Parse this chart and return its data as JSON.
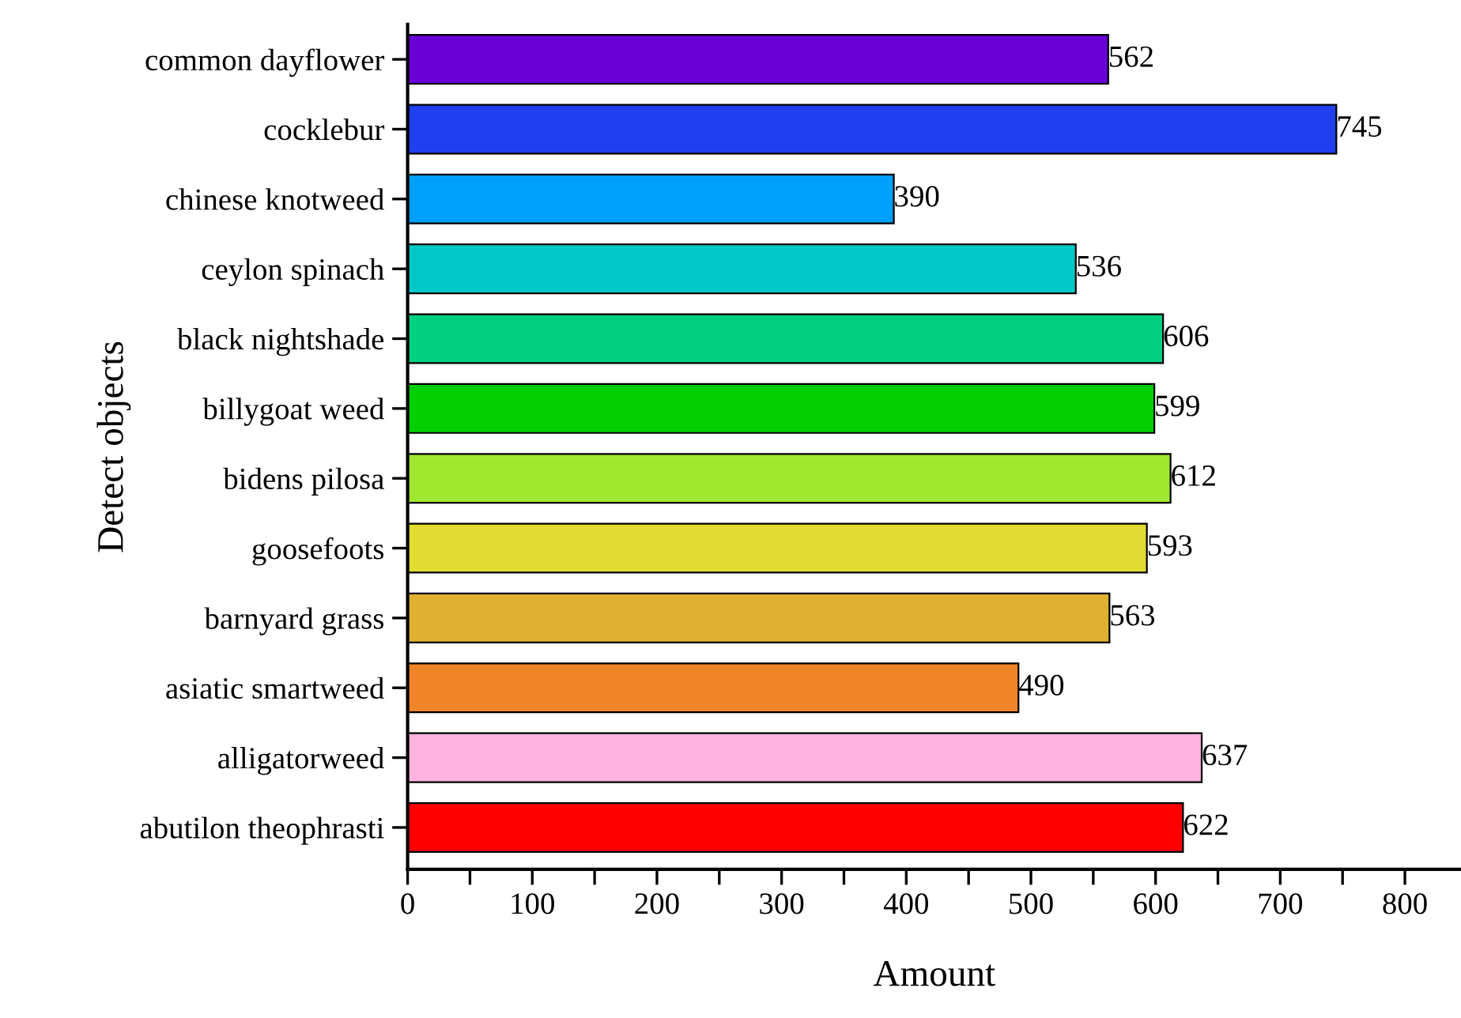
{
  "chart_data": {
    "type": "bar",
    "orientation": "horizontal",
    "xlabel": "Amount",
    "ylabel": "Detect objects",
    "categories": [
      "common dayflower",
      "cocklebur",
      "chinese knotweed",
      "ceylon spinach",
      "black nightshade",
      "billygoat weed",
      "bidens pilosa",
      "goosefoots",
      "barnyard grass",
      "asiatic smartweed",
      "alligatorweed",
      "abutilon theophrasti"
    ],
    "values": [
      562,
      745,
      390,
      536,
      606,
      599,
      612,
      593,
      563,
      490,
      637,
      622
    ],
    "colors": [
      "#6a00d8",
      "#2040f0",
      "#00a0ff",
      "#00c8c8",
      "#00d080",
      "#00d000",
      "#a0e830",
      "#e0dc30",
      "#e0b030",
      "#f08428",
      "#ffb4e0",
      "#ff0000"
    ],
    "xlim": [
      0,
      845
    ],
    "xticks": [
      0,
      {
        "value": 50,
        "label": null
      },
      100,
      {
        "value": 150,
        "label": null
      },
      200,
      {
        "value": 250,
        "label": null
      },
      300,
      {
        "value": 350,
        "label": null
      },
      400,
      {
        "value": 450,
        "label": null
      },
      500,
      {
        "value": 550,
        "label": null
      },
      600,
      {
        "value": 650,
        "label": null
      },
      700,
      {
        "value": 750,
        "label": null
      },
      800
    ],
    "data_labels": true,
    "grid": false,
    "legend": false
  }
}
